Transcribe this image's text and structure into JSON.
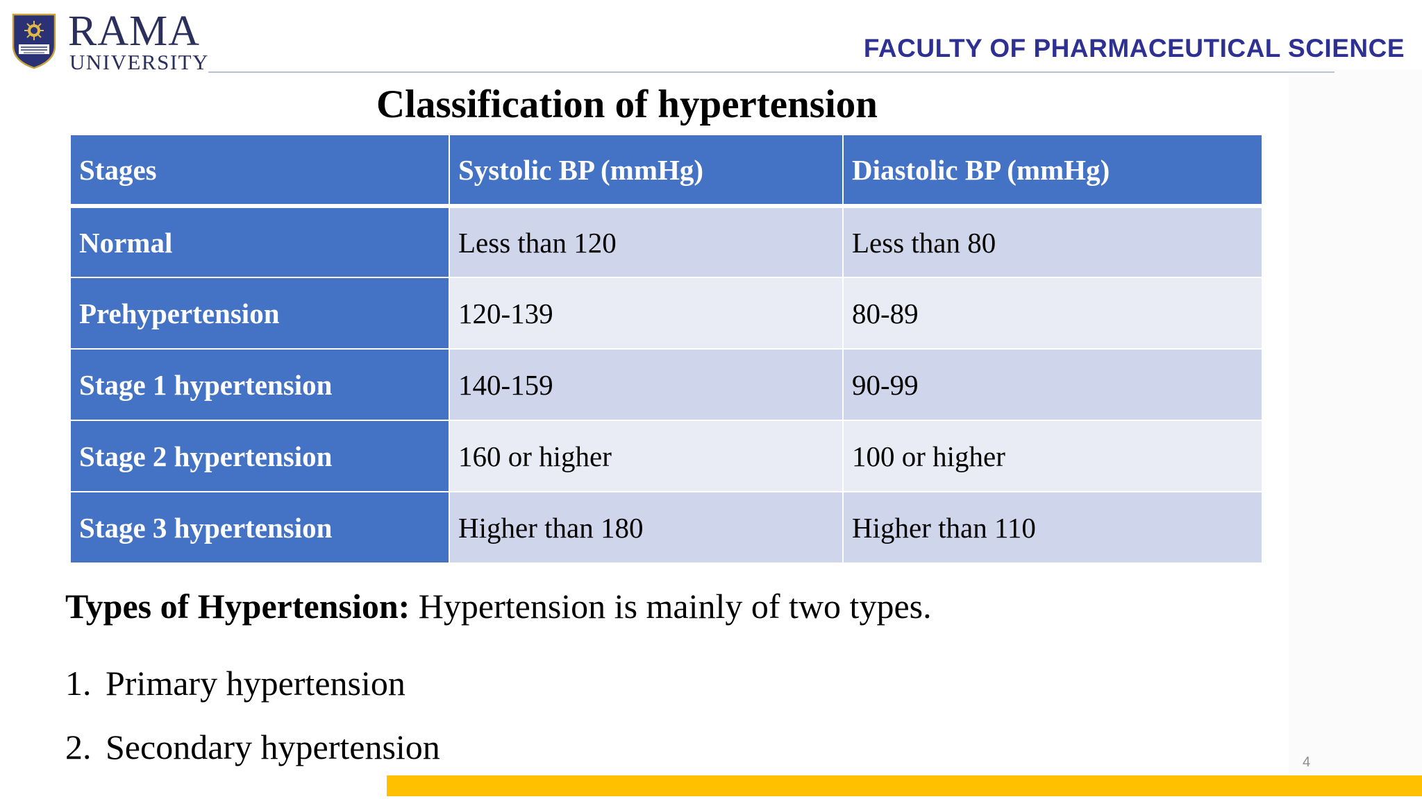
{
  "header": {
    "logo": {
      "name": "RAMA",
      "sub": "UNIVERSITY",
      "crest_text": "RAMA UNIVERSITY"
    },
    "faculty": "FACULTY OF PHARMACEUTICAL SCIENCE"
  },
  "title": "Classification of hypertension",
  "table": {
    "headers": [
      "Stages",
      "Systolic BP (mmHg)",
      "Diastolic BP (mmHg)"
    ],
    "rows": [
      [
        "Normal",
        "Less than 120",
        "Less than 80"
      ],
      [
        "Prehypertension",
        "120-139",
        "80-89"
      ],
      [
        "Stage 1 hypertension",
        "140-159",
        "90-99"
      ],
      [
        "Stage 2 hypertension",
        "160 or higher",
        "100 or higher"
      ],
      [
        "Stage 3 hypertension",
        "Higher than 180",
        "Higher than 110"
      ]
    ]
  },
  "types": {
    "label": "Types of Hypertension:",
    "text": " Hypertension is mainly of two types."
  },
  "list": [
    {
      "num": "1.",
      "text": "Primary hypertension"
    },
    {
      "num": "2.",
      "text": "Secondary hypertension"
    }
  ],
  "page_number": "4",
  "colors": {
    "table_header": "#4472c4",
    "row_odd": "#cfd5ea",
    "row_even": "#e9ebf5",
    "faculty_text": "#2e3192",
    "footer_bar": "#ffc000"
  }
}
